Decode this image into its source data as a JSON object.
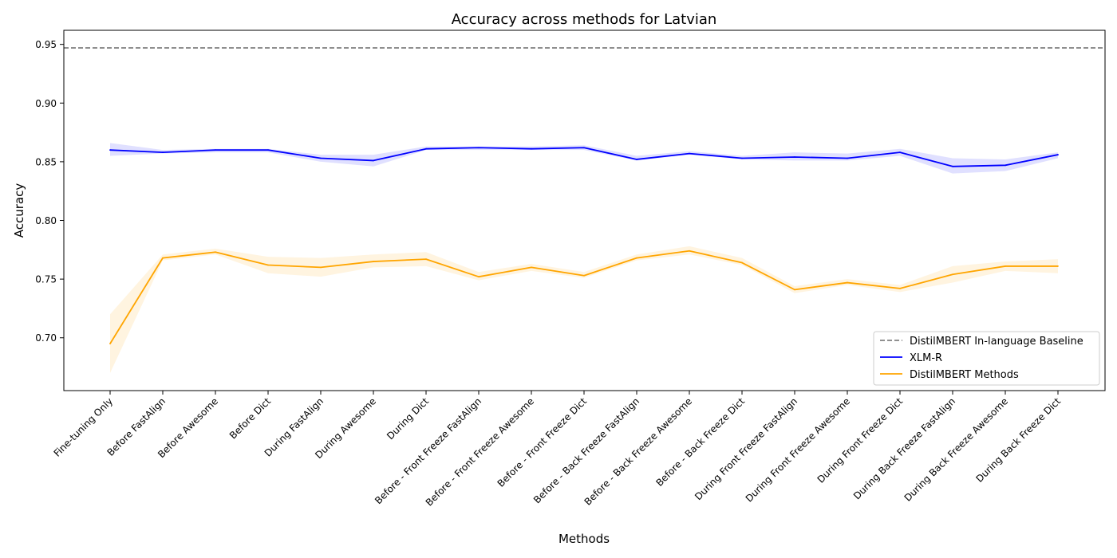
{
  "chart_data": {
    "type": "line",
    "title": "Accuracy across methods for Latvian",
    "xlabel": "Methods",
    "ylabel": "Accuracy",
    "ylim": [
      0.655,
      0.962
    ],
    "yticks": [
      0.7,
      0.75,
      0.8,
      0.85,
      0.9,
      0.95
    ],
    "ytick_labels": [
      "0.70",
      "0.75",
      "0.80",
      "0.85",
      "0.90",
      "0.95"
    ],
    "grid": false,
    "legend_position": "bottom-right",
    "categories": [
      "Fine-tuning Only",
      "Before FastAlign",
      "Before Awesome",
      "Before Dict",
      "During FastAlign",
      "During Awesome",
      "During Dict",
      "Before - Front Freeze FastAlign",
      "Before - Front Freeze Awesome",
      "Before - Front Freeze Dict",
      "Before - Back Freeze FastAlign",
      "Before - Back Freeze Awesome",
      "Before - Back Freeze Dict",
      "During Front Freeze FastAlign",
      "During Front Freeze Awesome",
      "During Front Freeze Dict",
      "During Back Freeze FastAlign",
      "During Back Freeze Awesome",
      "During Back Freeze Dict"
    ],
    "baseline": {
      "name": "DistilMBERT In-language Baseline",
      "value": 0.947,
      "color": "#808080"
    },
    "series": [
      {
        "name": "XLM-R",
        "color": "#0000ff",
        "band_color": "#0000ff",
        "values": [
          0.86,
          0.858,
          0.86,
          0.86,
          0.853,
          0.851,
          0.861,
          0.862,
          0.861,
          0.862,
          0.852,
          0.857,
          0.853,
          0.854,
          0.853,
          0.858,
          0.846,
          0.847,
          0.856
        ],
        "lower": [
          0.855,
          0.857,
          0.858,
          0.858,
          0.85,
          0.846,
          0.86,
          0.86,
          0.86,
          0.86,
          0.851,
          0.856,
          0.852,
          0.851,
          0.851,
          0.855,
          0.84,
          0.842,
          0.853
        ],
        "upper": [
          0.866,
          0.86,
          0.861,
          0.861,
          0.856,
          0.856,
          0.863,
          0.863,
          0.863,
          0.864,
          0.855,
          0.859,
          0.855,
          0.858,
          0.857,
          0.861,
          0.853,
          0.852,
          0.858
        ]
      },
      {
        "name": "DistilMBERT Methods",
        "color": "#ffa500",
        "band_color": "#ffa500",
        "values": [
          0.695,
          0.768,
          0.773,
          0.762,
          0.76,
          0.765,
          0.767,
          0.752,
          0.76,
          0.753,
          0.768,
          0.774,
          0.764,
          0.741,
          0.747,
          0.742,
          0.754,
          0.761,
          0.761
        ],
        "lower": [
          0.67,
          0.766,
          0.771,
          0.755,
          0.752,
          0.76,
          0.761,
          0.749,
          0.757,
          0.751,
          0.766,
          0.771,
          0.762,
          0.738,
          0.745,
          0.739,
          0.747,
          0.757,
          0.755
        ],
        "upper": [
          0.72,
          0.771,
          0.776,
          0.769,
          0.768,
          0.771,
          0.773,
          0.756,
          0.763,
          0.756,
          0.771,
          0.778,
          0.768,
          0.744,
          0.75,
          0.745,
          0.761,
          0.765,
          0.767
        ]
      }
    ]
  }
}
